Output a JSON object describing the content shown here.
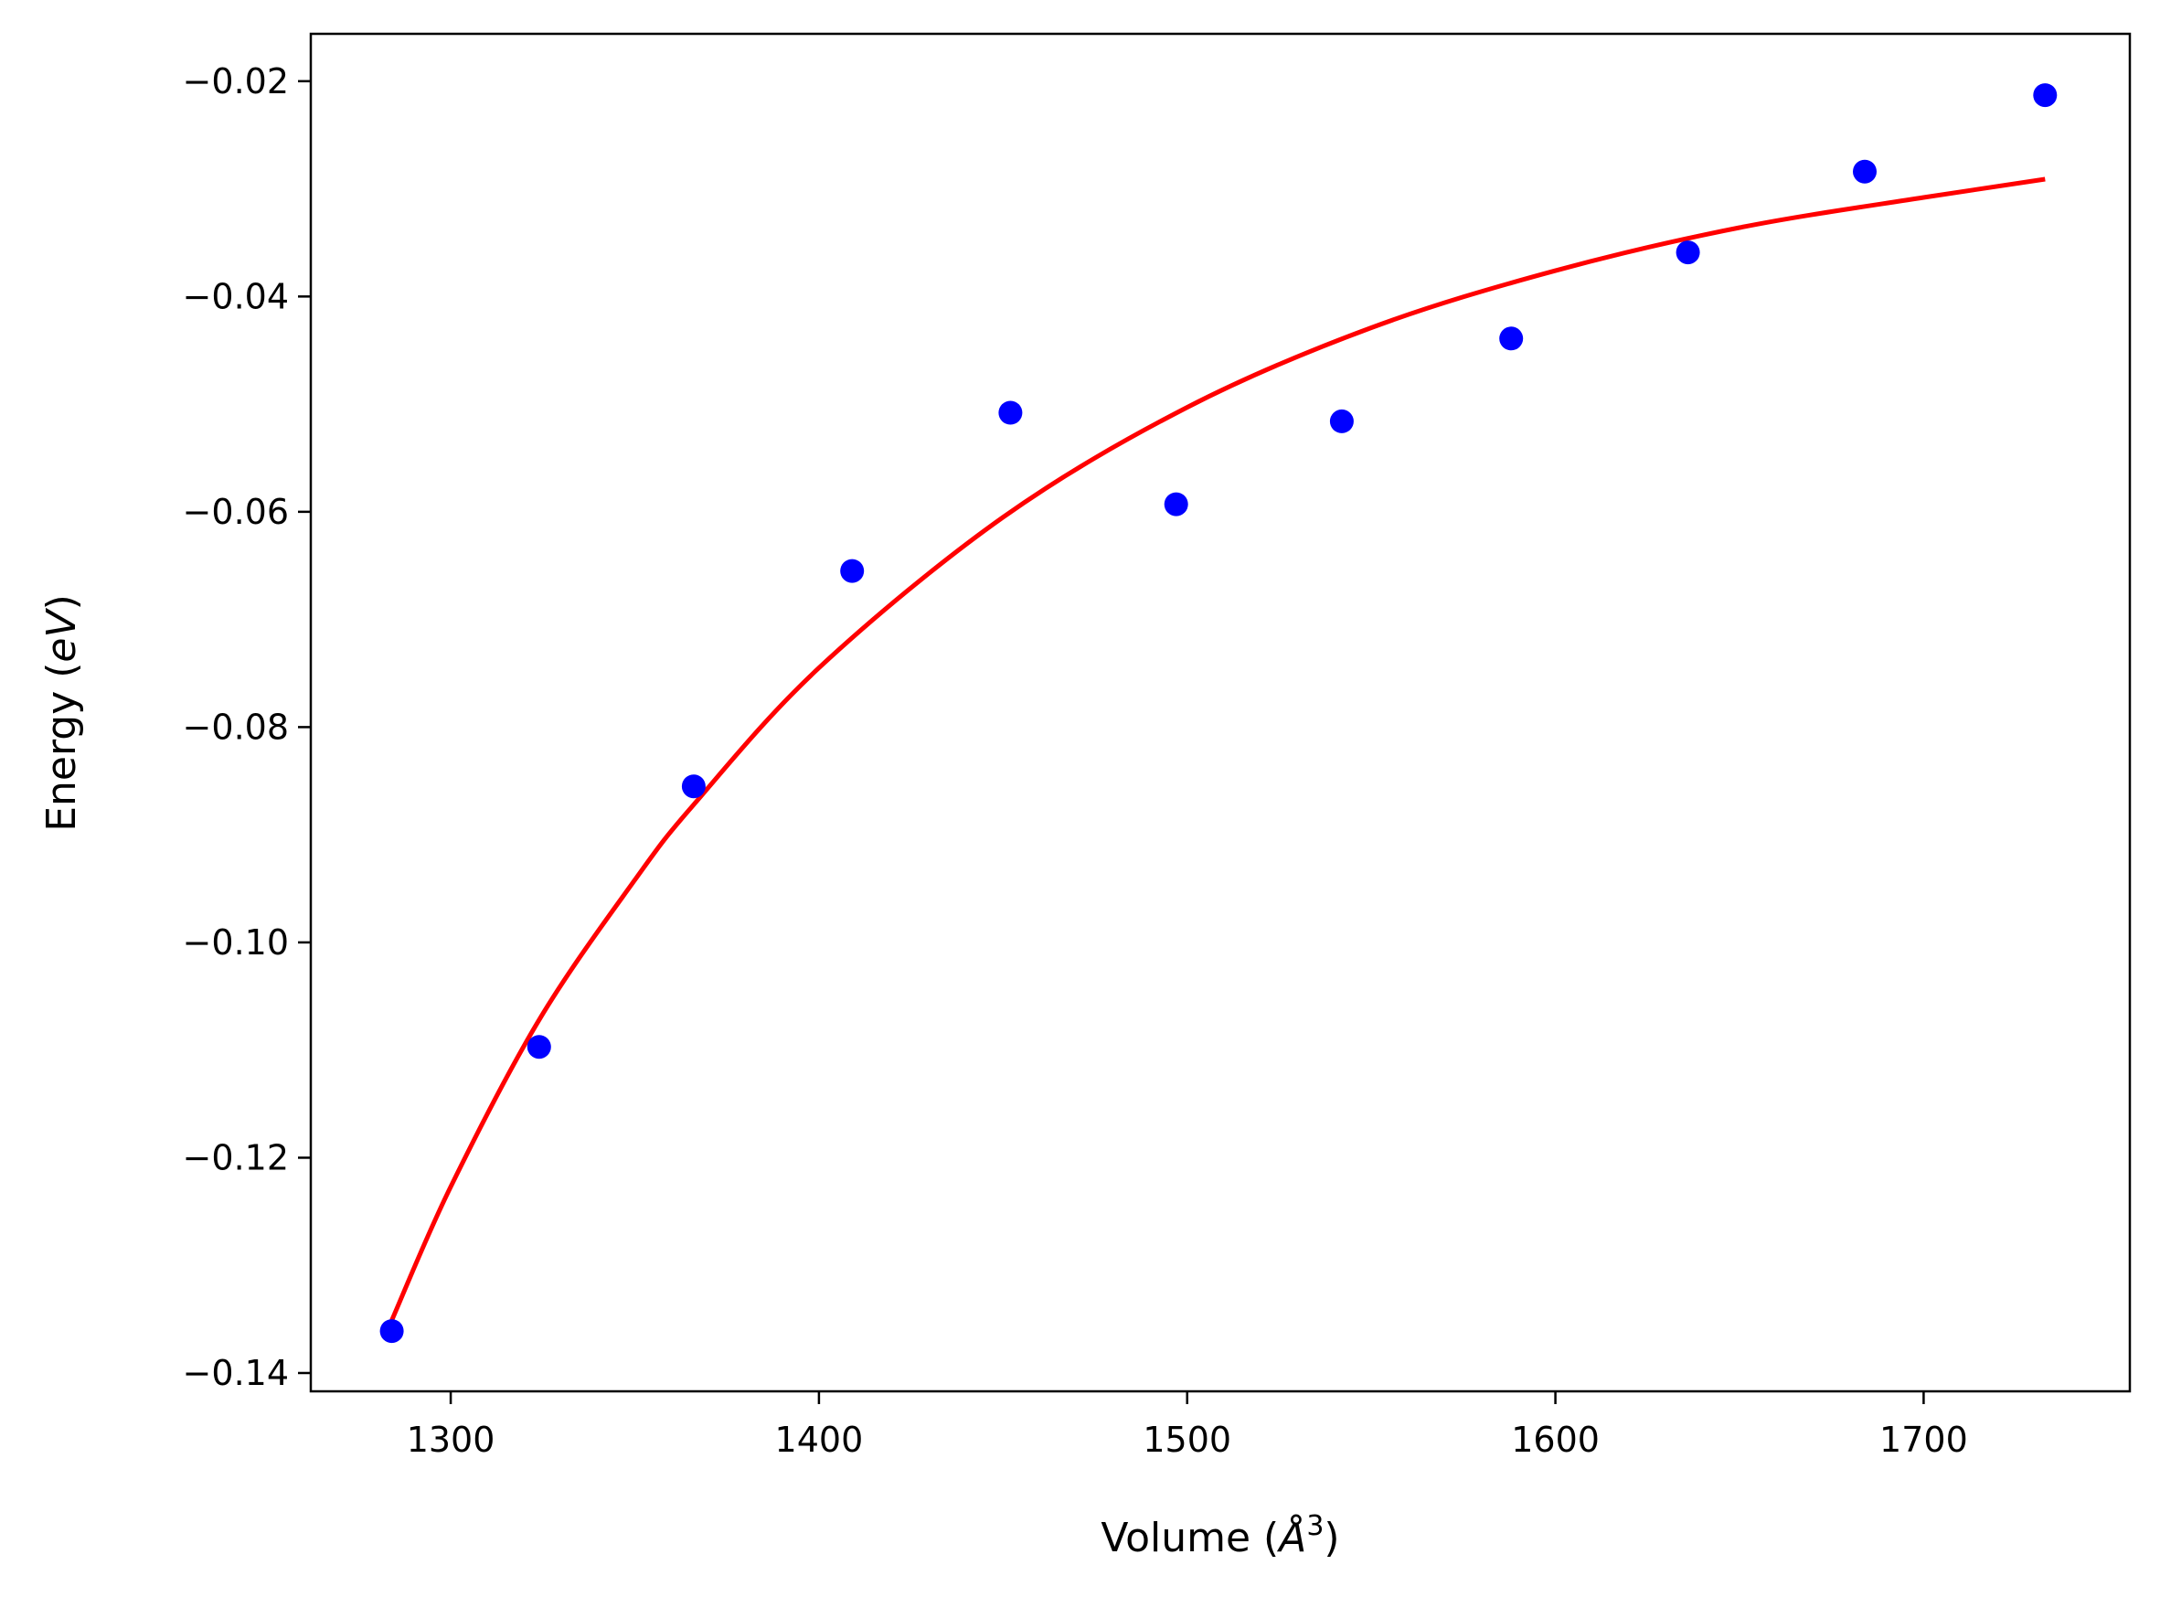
{
  "chart_data": {
    "type": "scatter",
    "title": "",
    "xlabel": "Volume (Å³)",
    "xlabel_parts": {
      "prefix": "Volume (",
      "symbol": "Å",
      "superscript": "3",
      "suffix": ")"
    },
    "ylabel": "Energy (eV)",
    "ylabel_parts": {
      "prefix": "Energy (",
      "italic": "eV",
      "suffix": ")"
    },
    "xlim": [
      1262,
      1756
    ],
    "ylim": [
      -0.1417,
      -0.0156
    ],
    "xticks": [
      1300,
      1400,
      1500,
      1600,
      1700
    ],
    "xtick_labels": [
      "1300",
      "1400",
      "1500",
      "1600",
      "1700"
    ],
    "yticks": [
      -0.14,
      -0.12,
      -0.1,
      -0.08,
      -0.06,
      -0.04,
      -0.02
    ],
    "ytick_labels": [
      "−0.14",
      "−0.12",
      "−0.10",
      "−0.08",
      "−0.06",
      "−0.04",
      "−0.02"
    ],
    "grid": false,
    "legend": "none",
    "series": [
      {
        "type": "scatter",
        "color": "#0000ff",
        "x": [
          1284,
          1324,
          1366,
          1409,
          1452,
          1497,
          1542,
          1588,
          1636,
          1684,
          1733
        ],
        "y": [
          -0.1361,
          -0.1097,
          -0.0855,
          -0.0655,
          -0.0508,
          -0.0593,
          -0.0516,
          -0.0439,
          -0.0359,
          -0.0284,
          -0.0213
        ]
      },
      {
        "type": "line",
        "color": "#ff0000",
        "x": [
          1284,
          1300,
          1324,
          1350,
          1366,
          1400,
          1450,
          1500,
          1550,
          1600,
          1650,
          1700,
          1733
        ],
        "y": [
          -0.1351,
          -0.1227,
          -0.1072,
          -0.0942,
          -0.0872,
          -0.0745,
          -0.0605,
          -0.0503,
          -0.0429,
          -0.0376,
          -0.0336,
          -0.0308,
          -0.0291
        ]
      }
    ]
  }
}
